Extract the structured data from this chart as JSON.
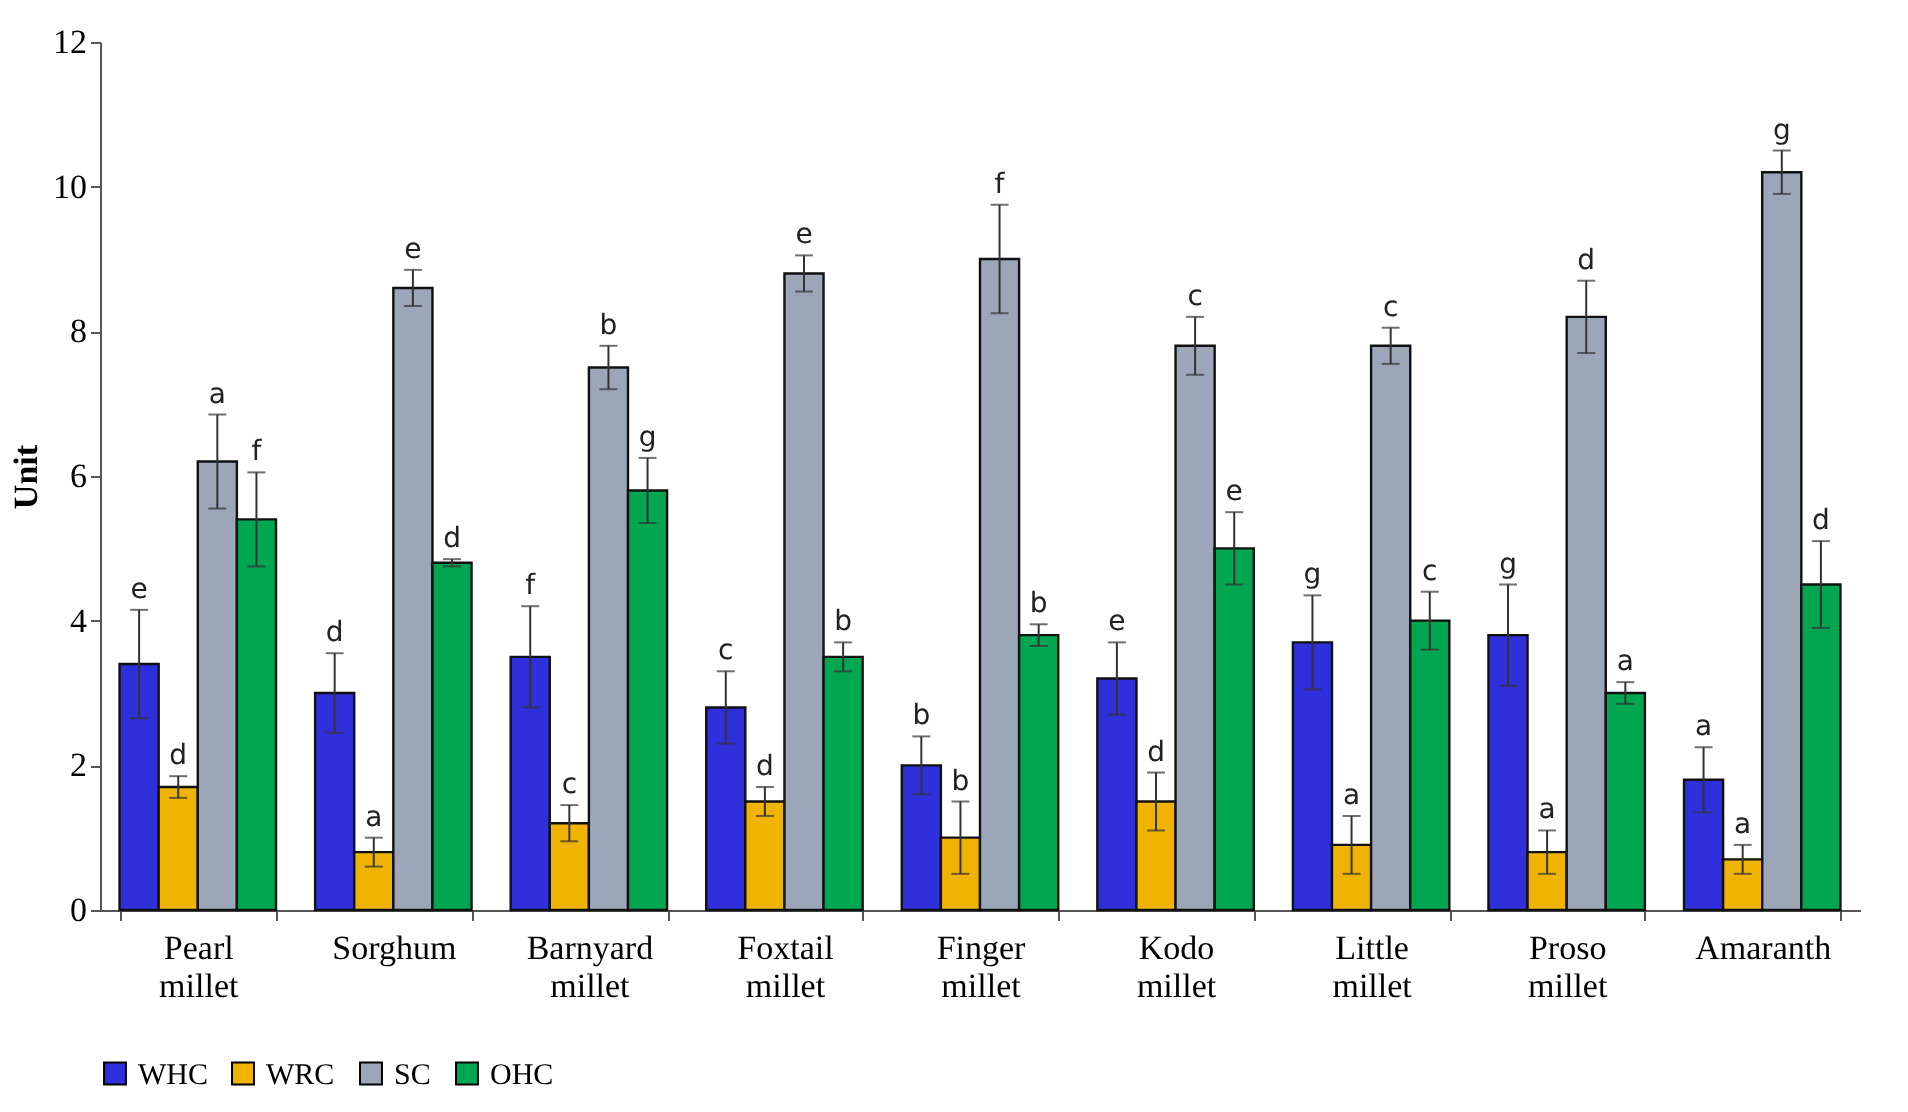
{
  "chart_data": {
    "type": "bar",
    "ylabel": "Unit",
    "categories": [
      "Pearl millet",
      "Sorghum",
      "Barnyard millet",
      "Foxtail millet",
      "Finger millet",
      "Kodo millet",
      "Little millet",
      "Proso millet",
      "Amaranth"
    ],
    "ylim": [
      0,
      12
    ],
    "yticks": [
      0,
      2,
      4,
      6,
      8,
      10,
      12
    ],
    "grid": false,
    "legend": "bottom",
    "series": [
      {
        "name": "WHC",
        "color": "#2f2fdc",
        "values": [
          3.4,
          3.0,
          3.5,
          2.8,
          2.0,
          3.2,
          3.7,
          3.8,
          1.8
        ],
        "errors": [
          0.75,
          0.55,
          0.7,
          0.5,
          0.4,
          0.5,
          0.65,
          0.7,
          0.45
        ],
        "value_labels": [
          "e",
          "d",
          "f",
          "c",
          "b",
          "e",
          "g",
          "g",
          "a"
        ]
      },
      {
        "name": "WRC",
        "color": "#f0b400",
        "values": [
          1.7,
          0.8,
          1.2,
          1.5,
          1.0,
          1.5,
          0.9,
          0.8,
          0.7
        ],
        "errors": [
          0.15,
          0.2,
          0.25,
          0.2,
          0.5,
          0.4,
          0.4,
          0.3,
          0.2
        ],
        "value_labels": [
          "d",
          "a",
          "c",
          "d",
          "b",
          "d",
          "a",
          "a",
          "a"
        ]
      },
      {
        "name": "SC",
        "color": "#9ba7b9",
        "values": [
          6.2,
          8.6,
          7.5,
          8.8,
          9.0,
          7.8,
          7.8,
          8.2,
          10.2
        ],
        "errors": [
          0.65,
          0.25,
          0.3,
          0.25,
          0.75,
          0.4,
          0.25,
          0.5,
          0.3
        ],
        "value_labels": [
          "a",
          "e",
          "b",
          "e",
          "f",
          "c",
          "c",
          "d",
          "g"
        ]
      },
      {
        "name": "OHC",
        "color": "#00a650",
        "values": [
          5.4,
          4.8,
          5.8,
          3.5,
          3.8,
          5.0,
          4.0,
          3.0,
          4.5
        ],
        "errors": [
          0.65,
          0.05,
          0.45,
          0.2,
          0.15,
          0.5,
          0.4,
          0.15,
          0.6
        ],
        "value_labels": [
          "f",
          "d",
          "g",
          "b",
          "b",
          "e",
          "c",
          "a",
          "d"
        ]
      }
    ]
  }
}
